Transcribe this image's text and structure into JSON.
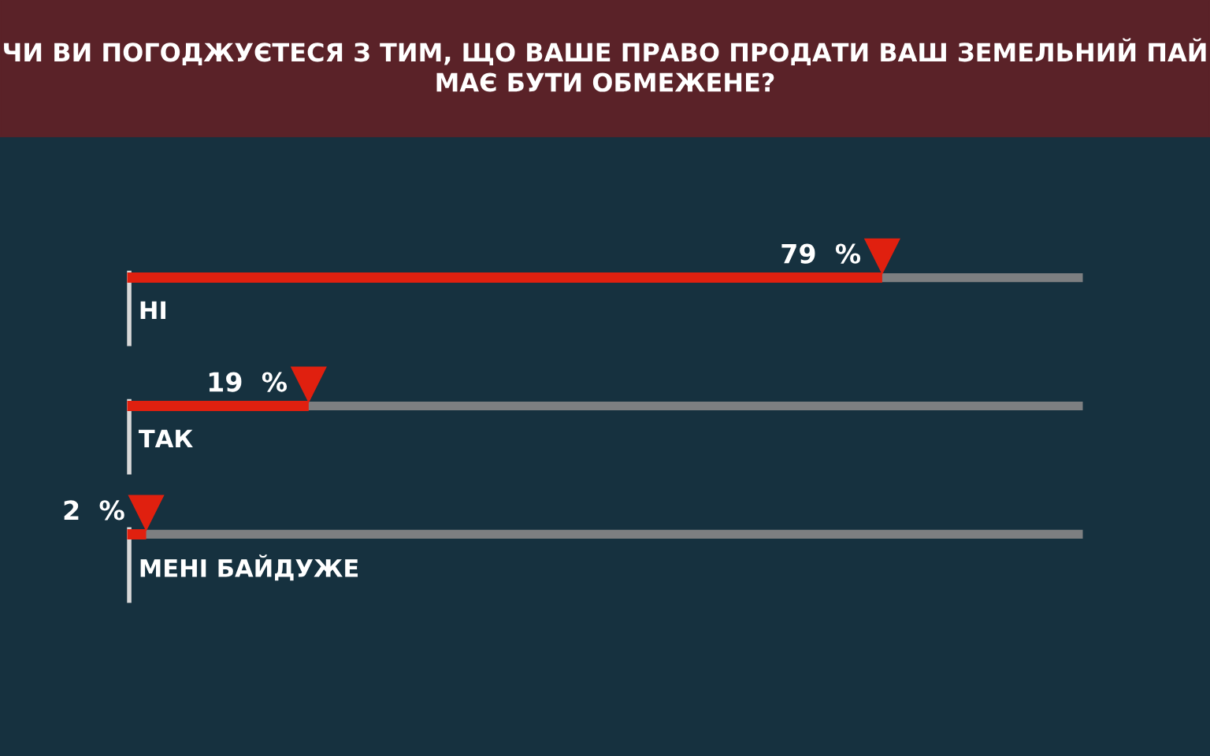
{
  "chart_data": {
    "type": "bar",
    "orientation": "horizontal",
    "title": "ЧИ ВИ ПОГОДЖУЄТЕСЯ З ТИМ, ЩО ВАШЕ ПРАВО ПРОДАТИ ВАШ ЗЕМЕЛЬНИЙ ПАЙ\nМАЄ БУТИ ОБМЕЖЕНЕ?",
    "categories": [
      "НІ",
      "ТАК",
      "МЕНІ БАЙДУЖЕ"
    ],
    "values": [
      79,
      19,
      2
    ],
    "value_labels": [
      "79  %",
      "19  %",
      "2  %"
    ],
    "color": "#e0200f",
    "xlim": [
      0,
      100
    ],
    "legend": false
  }
}
